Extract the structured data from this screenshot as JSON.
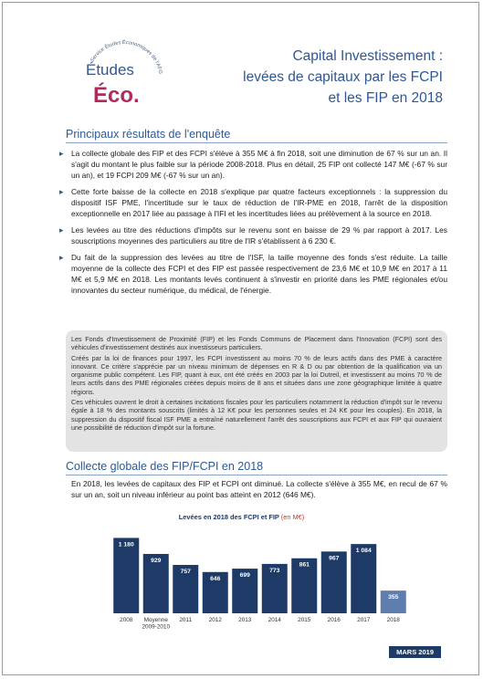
{
  "logo": {
    "arc_text": "Service Études Économiques de l'AFG",
    "line1": "Études",
    "line2": "Éco."
  },
  "header": {
    "title_lines": [
      "Capital Investissement :",
      "levées de capitaux par les FCPI",
      "et les FIP en 2018"
    ]
  },
  "summary": {
    "heading": "Principaux résultats de l'enquête",
    "bullets": [
      "La collecte globale des FIP et des FCPI s'élève à 355 M€ à fin 2018, soit une diminution de 67 % sur un an. Il s'agit du montant le plus faible sur la période 2008-2018. Plus en détail, 25 FIP ont collecté 147 M€ (-67 % sur un an), et 19 FCPI 209 M€ (-67 % sur un an).",
      "Cette forte baisse de la collecte en 2018 s'explique par quatre facteurs exceptionnels : la suppression du dispositif ISF PME, l'incertitude sur le taux de réduction de l'IR-PME en 2018, l'arrêt de la disposition exceptionnelle en 2017 liée au passage à l'IFI et les incertitudes liées au prélèvement à la source en 2018.",
      "Les levées au titre des réductions d'impôts sur le revenu sont en baisse de 29 % par rapport à 2017. Les souscriptions moyennes des particuliers au titre de l'IR s'établissent à 6 230 €.",
      "Du fait de la suppression des levées au titre de l'ISF, la taille moyenne des fonds s'est réduite. La taille moyenne de la collecte des FCPI et des FIP est passée respectivement de 23,6 M€ et 10,9 M€ en 2017 à 11 M€ et 5,9 M€ en 2018. Les montants levés continuent à s'investir en priorité dans les PME régionales et/ou innovantes du secteur numérique, du médical, de l'énergie."
    ]
  },
  "box": {
    "paragraphs": [
      "Les Fonds d'Investissement de Proximité (FIP) et les Fonds Communs de Placement dans l'Innovation (FCPI) sont des véhicules d'investissement destinés aux investisseurs particuliers.",
      "Créés par la loi de finances pour 1997, les FCPI investissent au moins 70 % de leurs actifs dans des PME à caractère innovant. Ce critère s'apprécie par un niveau minimum de dépenses en R & D ou par obtention de la qualification via un organisme public compétent. Les FIP, quant à eux, ont été créés en 2003 par la loi Dutreil, et investissent au moins 70 % de leurs actifs dans des PME régionales créées depuis moins de 8 ans et situées dans une zone géographique limitée à quatre régions.",
      "Ces véhicules ouvrent le droit à certaines incitations fiscales pour les particuliers notamment la réduction d'impôt sur le revenu égale à 18 % des montants souscrits (limités à 12 K€ pour les personnes seules et 24 K€ pour les couples). En 2018, la suppression du dispositif fiscal ISF PME a entraîné naturellement l'arrêt des souscriptions aux FCPI et aux FIP qui ouvraient une possibilité de réduction d'impôt sur la fortune."
    ]
  },
  "collecte": {
    "heading": "Collecte globale des FIP/FCPI en 2018",
    "paragraph": "En 2018, les levées de capitaux des FIP et FCPI ont diminué. La collecte s'élève à 355 M€, en recul de 67 % sur un an, soit un niveau inférieur au point bas atteint en 2012 (646 M€)."
  },
  "chart_data": {
    "type": "bar",
    "title": "Levées en 2018 des FCPI et FIP",
    "subtitle": "(en M€)",
    "categories": [
      "2008",
      "Moyenne 2009-2010",
      "2011",
      "2012",
      "2013",
      "2014",
      "2015",
      "2016",
      "2017",
      "2018"
    ],
    "values": [
      1180,
      929,
      757,
      646,
      699,
      773,
      861,
      967,
      1084,
      355
    ],
    "value_labels": [
      "1 180",
      "929",
      "757",
      "646",
      "699",
      "773",
      "861",
      "967",
      "1 084",
      "355"
    ],
    "colors": [
      "#1e3a66",
      "#1e3a66",
      "#1e3a66",
      "#1e3a66",
      "#1e3a66",
      "#1e3a66",
      "#1e3a66",
      "#1e3a66",
      "#1e3a66",
      "#5f7eae"
    ]
  },
  "footer": {
    "date": "MARS 2019"
  }
}
